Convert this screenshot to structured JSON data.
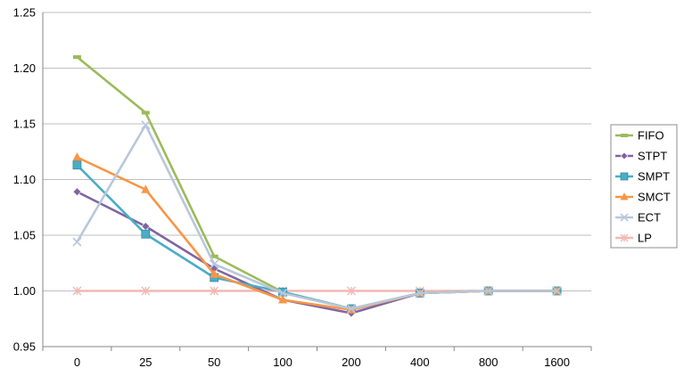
{
  "chart_data": {
    "type": "line",
    "title": "",
    "xlabel": "",
    "ylabel": "",
    "categories": [
      "0",
      "25",
      "50",
      "100",
      "200",
      "400",
      "800",
      "1600"
    ],
    "ylim": [
      0.95,
      1.25
    ],
    "yticks": [
      "0.95",
      "1.00",
      "1.05",
      "1.10",
      "1.15",
      "1.20",
      "1.25"
    ],
    "grid": true,
    "legend_position": "right",
    "series": [
      {
        "name": "FIFO",
        "color": "#9bbb59",
        "marker": "dash",
        "values": [
          1.21,
          1.16,
          1.031,
          0.999,
          0.984,
          0.998,
          1.0,
          1.0
        ]
      },
      {
        "name": "STPT",
        "color": "#8064a2",
        "marker": "diamond",
        "values": [
          1.089,
          1.058,
          1.02,
          0.992,
          0.98,
          0.998,
          1.0,
          1.0
        ]
      },
      {
        "name": "SMPT",
        "color": "#4bacc6",
        "marker": "square",
        "values": [
          1.113,
          1.051,
          1.012,
          0.999,
          0.984,
          0.998,
          1.0,
          1.0
        ]
      },
      {
        "name": "SMCT",
        "color": "#f79646",
        "marker": "triangle",
        "values": [
          1.12,
          1.091,
          1.015,
          0.992,
          0.983,
          0.998,
          1.0,
          1.0
        ]
      },
      {
        "name": "ECT",
        "color": "#b9c7da",
        "marker": "x",
        "values": [
          1.044,
          1.149,
          1.024,
          0.998,
          0.984,
          0.998,
          1.0,
          1.0
        ]
      },
      {
        "name": "LP",
        "color": "#f2b8b4",
        "marker": "star",
        "values": [
          1.0,
          1.0,
          1.0,
          1.0,
          1.0,
          1.0,
          1.0,
          1.0
        ]
      }
    ]
  }
}
